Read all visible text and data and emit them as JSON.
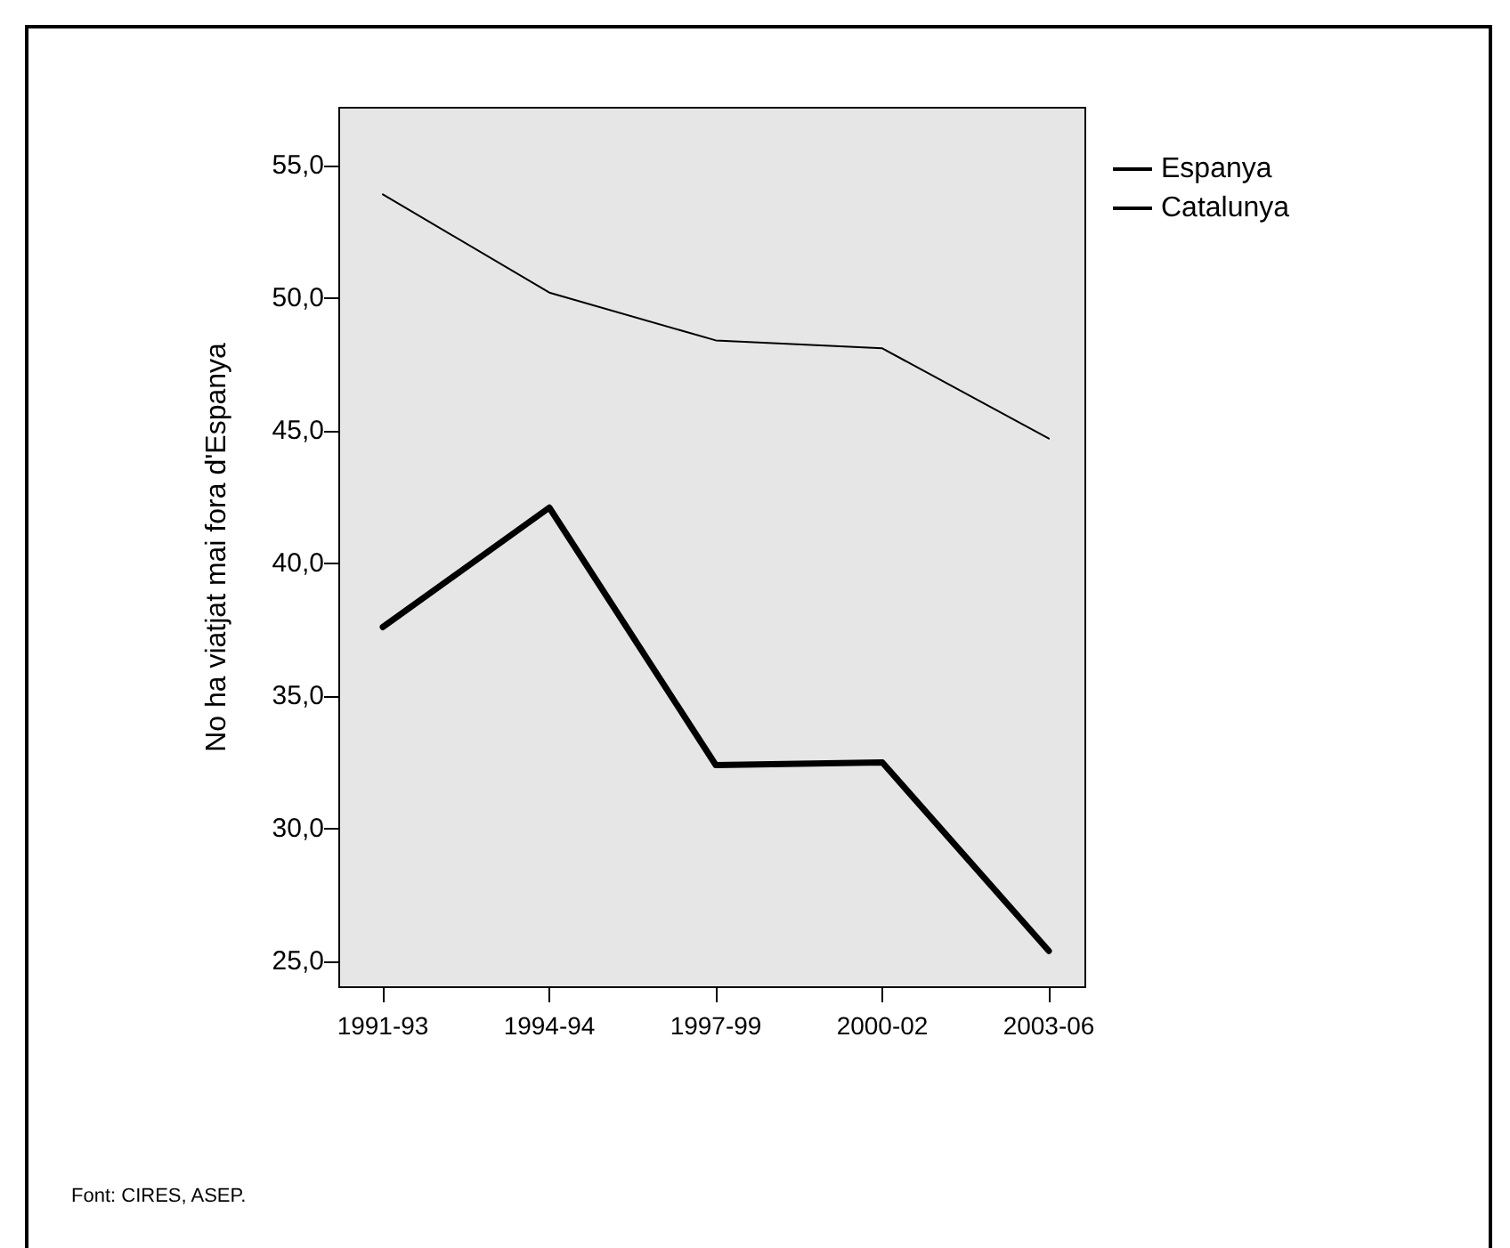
{
  "chart_data": {
    "type": "line",
    "ylabel": "No ha viatjat mai fora d'Espanya",
    "categories": [
      "1991-93",
      "1994-94",
      "1997-99",
      "2000-02",
      "2003-06"
    ],
    "series": [
      {
        "name": "Espanya",
        "color": "#000000",
        "values": [
          53.9,
          50.2,
          48.4,
          48.1,
          44.7
        ]
      },
      {
        "name": "Catalunya",
        "color": "#000000",
        "values": [
          37.6,
          42.1,
          32.4,
          32.5,
          25.4
        ]
      }
    ],
    "ylim": [
      24.0,
      57.2
    ],
    "yticks": [
      {
        "value": 25,
        "label": "25,0"
      },
      {
        "value": 30,
        "label": "30,0"
      },
      {
        "value": 35,
        "label": "35,0"
      },
      {
        "value": 40,
        "label": "40,0"
      },
      {
        "value": 45,
        "label": "45,0"
      },
      {
        "value": 50,
        "label": "50,0"
      },
      {
        "value": 55,
        "label": "55,0"
      }
    ],
    "grid": false,
    "legend": "top right",
    "marker": "none",
    "line_style": "solid",
    "annotations": [
      "Font:  CIRES, ASEP."
    ]
  }
}
